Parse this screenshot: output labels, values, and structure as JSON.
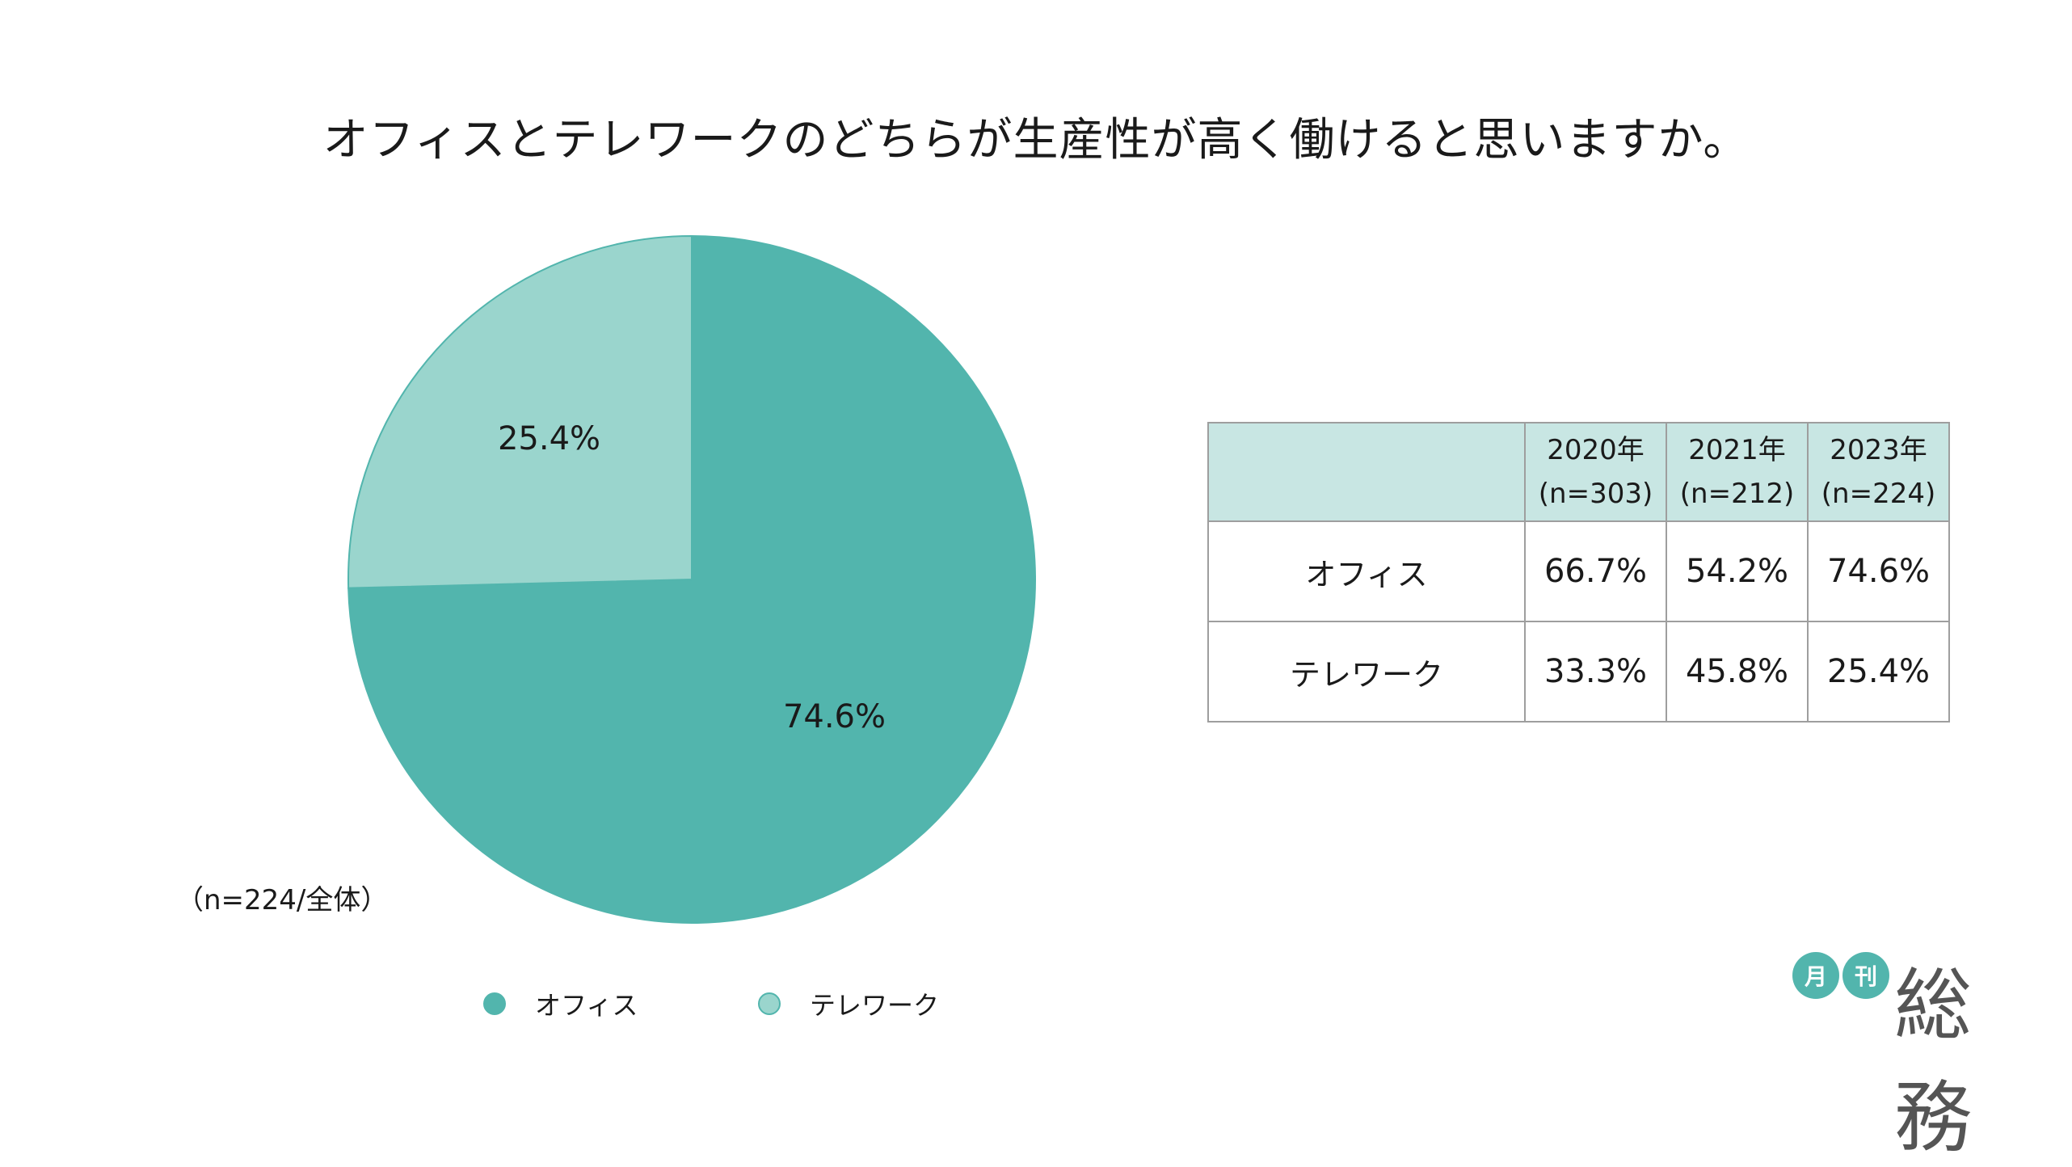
{
  "title": "オフィスとテレワークのどちらが生産性が高く働けると思いますか。",
  "sample_note": "（n=224/全体）",
  "colors": {
    "office": "#52b5ad",
    "telework": "#9ad5cd",
    "table_header_bg": "#c8e6e3",
    "logo_accent": "#52b5ad"
  },
  "chart_data": {
    "type": "pie",
    "title": "オフィスとテレワークのどちらが生産性が高く働けると思いますか。",
    "start_angle_deg": 0,
    "direction": "clockwise",
    "slices": [
      {
        "label": "オフィス",
        "value": 74.6,
        "display": "74.6%",
        "color": "#52b5ad"
      },
      {
        "label": "テレワーク",
        "value": 25.4,
        "display": "25.4%",
        "color": "#9ad5cd"
      }
    ],
    "legend": [
      "オフィス",
      "テレワーク"
    ],
    "legend_position": "bottom"
  },
  "legend": [
    {
      "label": "オフィス",
      "color": "#52b5ad"
    },
    {
      "label": "テレワーク",
      "color": "#9ad5cd"
    }
  ],
  "table": {
    "corner": "",
    "columns": [
      {
        "year": "2020年",
        "n": "(n=303)"
      },
      {
        "year": "2021年",
        "n": "(n=212)"
      },
      {
        "year": "2023年",
        "n": "(n=224)"
      }
    ],
    "rows": [
      {
        "label": "オフィス",
        "values": [
          "66.7%",
          "54.2%",
          "74.6%"
        ]
      },
      {
        "label": "テレワーク",
        "values": [
          "33.3%",
          "45.8%",
          "25.4%"
        ]
      }
    ]
  },
  "logo": {
    "badge_1": "月",
    "badge_2": "刊",
    "text": "総務"
  }
}
